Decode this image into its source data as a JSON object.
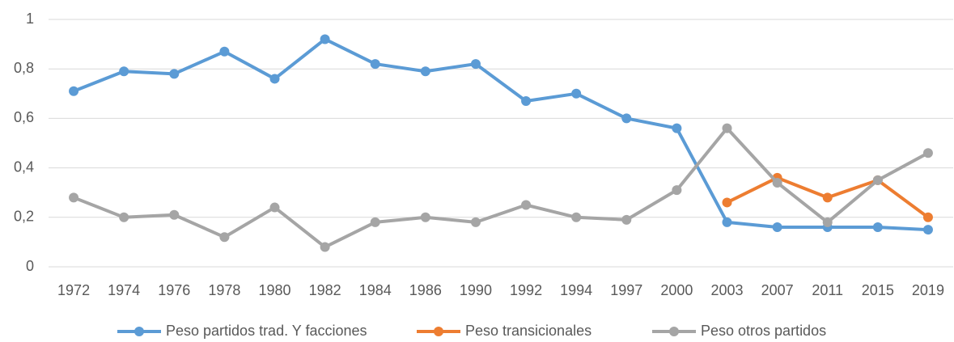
{
  "chart_data": {
    "type": "line",
    "categories": [
      "1972",
      "1974",
      "1976",
      "1978",
      "1980",
      "1982",
      "1984",
      "1986",
      "1990",
      "1992",
      "1994",
      "1997",
      "2000",
      "2003",
      "2007",
      "2011",
      "2015",
      "2019"
    ],
    "series": [
      {
        "name": "Peso partidos trad. Y facciones",
        "color": "#5b9bd5",
        "values": [
          0.71,
          0.79,
          0.78,
          0.87,
          0.76,
          0.92,
          0.82,
          0.79,
          0.82,
          0.67,
          0.7,
          0.6,
          0.56,
          0.18,
          0.16,
          0.16,
          0.16,
          0.15
        ]
      },
      {
        "name": "Peso transicionales",
        "color": "#ed7d31",
        "values": [
          null,
          null,
          null,
          null,
          null,
          null,
          null,
          null,
          null,
          null,
          null,
          null,
          null,
          0.26,
          0.36,
          0.28,
          0.35,
          0.2
        ]
      },
      {
        "name": "Peso otros partidos",
        "color": "#a5a5a5",
        "values": [
          0.28,
          0.2,
          0.21,
          0.12,
          0.24,
          0.08,
          0.18,
          0.2,
          0.18,
          0.25,
          0.2,
          0.19,
          0.31,
          0.56,
          0.34,
          0.18,
          0.35,
          0.46
        ]
      }
    ],
    "ylim": [
      0,
      1
    ],
    "yticks": [
      0,
      {
        "value": 0.2,
        "label": "0,2"
      },
      {
        "value": 0.4,
        "label": "0,4"
      },
      {
        "value": 0.6,
        "label": "0,6"
      },
      {
        "value": 0.8,
        "label": "0,8"
      },
      1
    ],
    "grid": true,
    "legend": "bottom"
  }
}
